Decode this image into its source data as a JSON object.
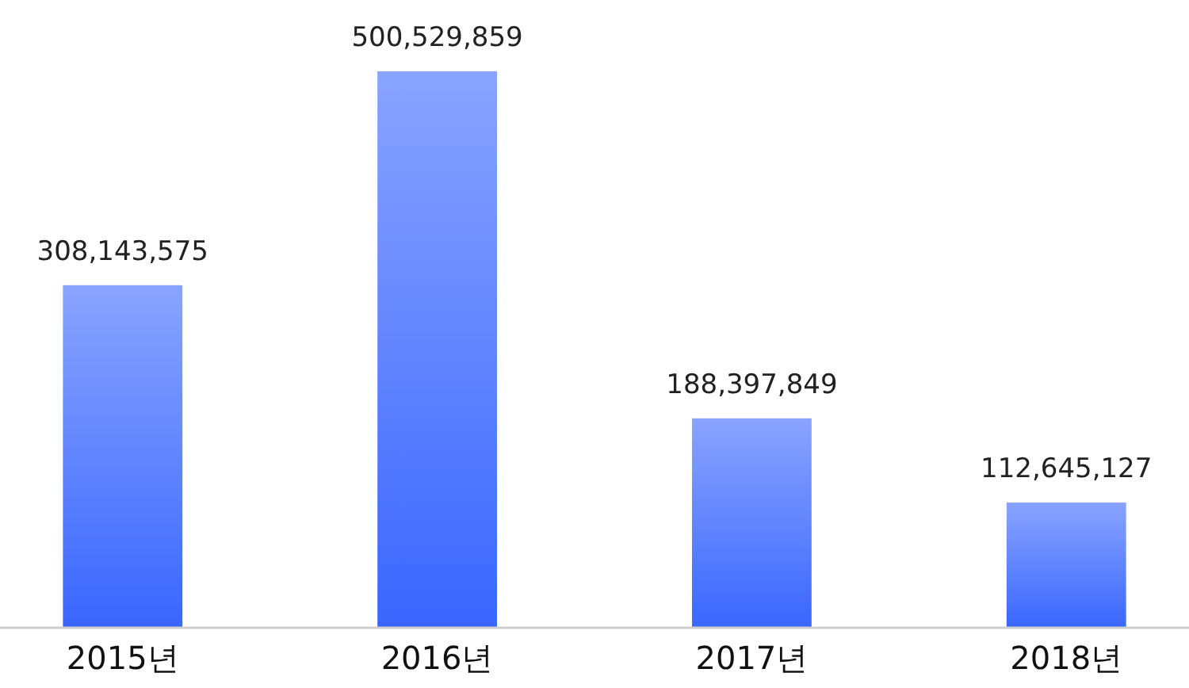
{
  "chart_data": {
    "type": "bar",
    "categories": [
      "2015년",
      "2016년",
      "2017년",
      "2018년"
    ],
    "values": [
      308143575,
      500529859,
      188397849,
      112645127
    ],
    "value_labels": [
      "308,143,575",
      "500,529,859",
      "188,397,849",
      "112,645,127"
    ],
    "color": "#3a66ff",
    "grid": false
  }
}
